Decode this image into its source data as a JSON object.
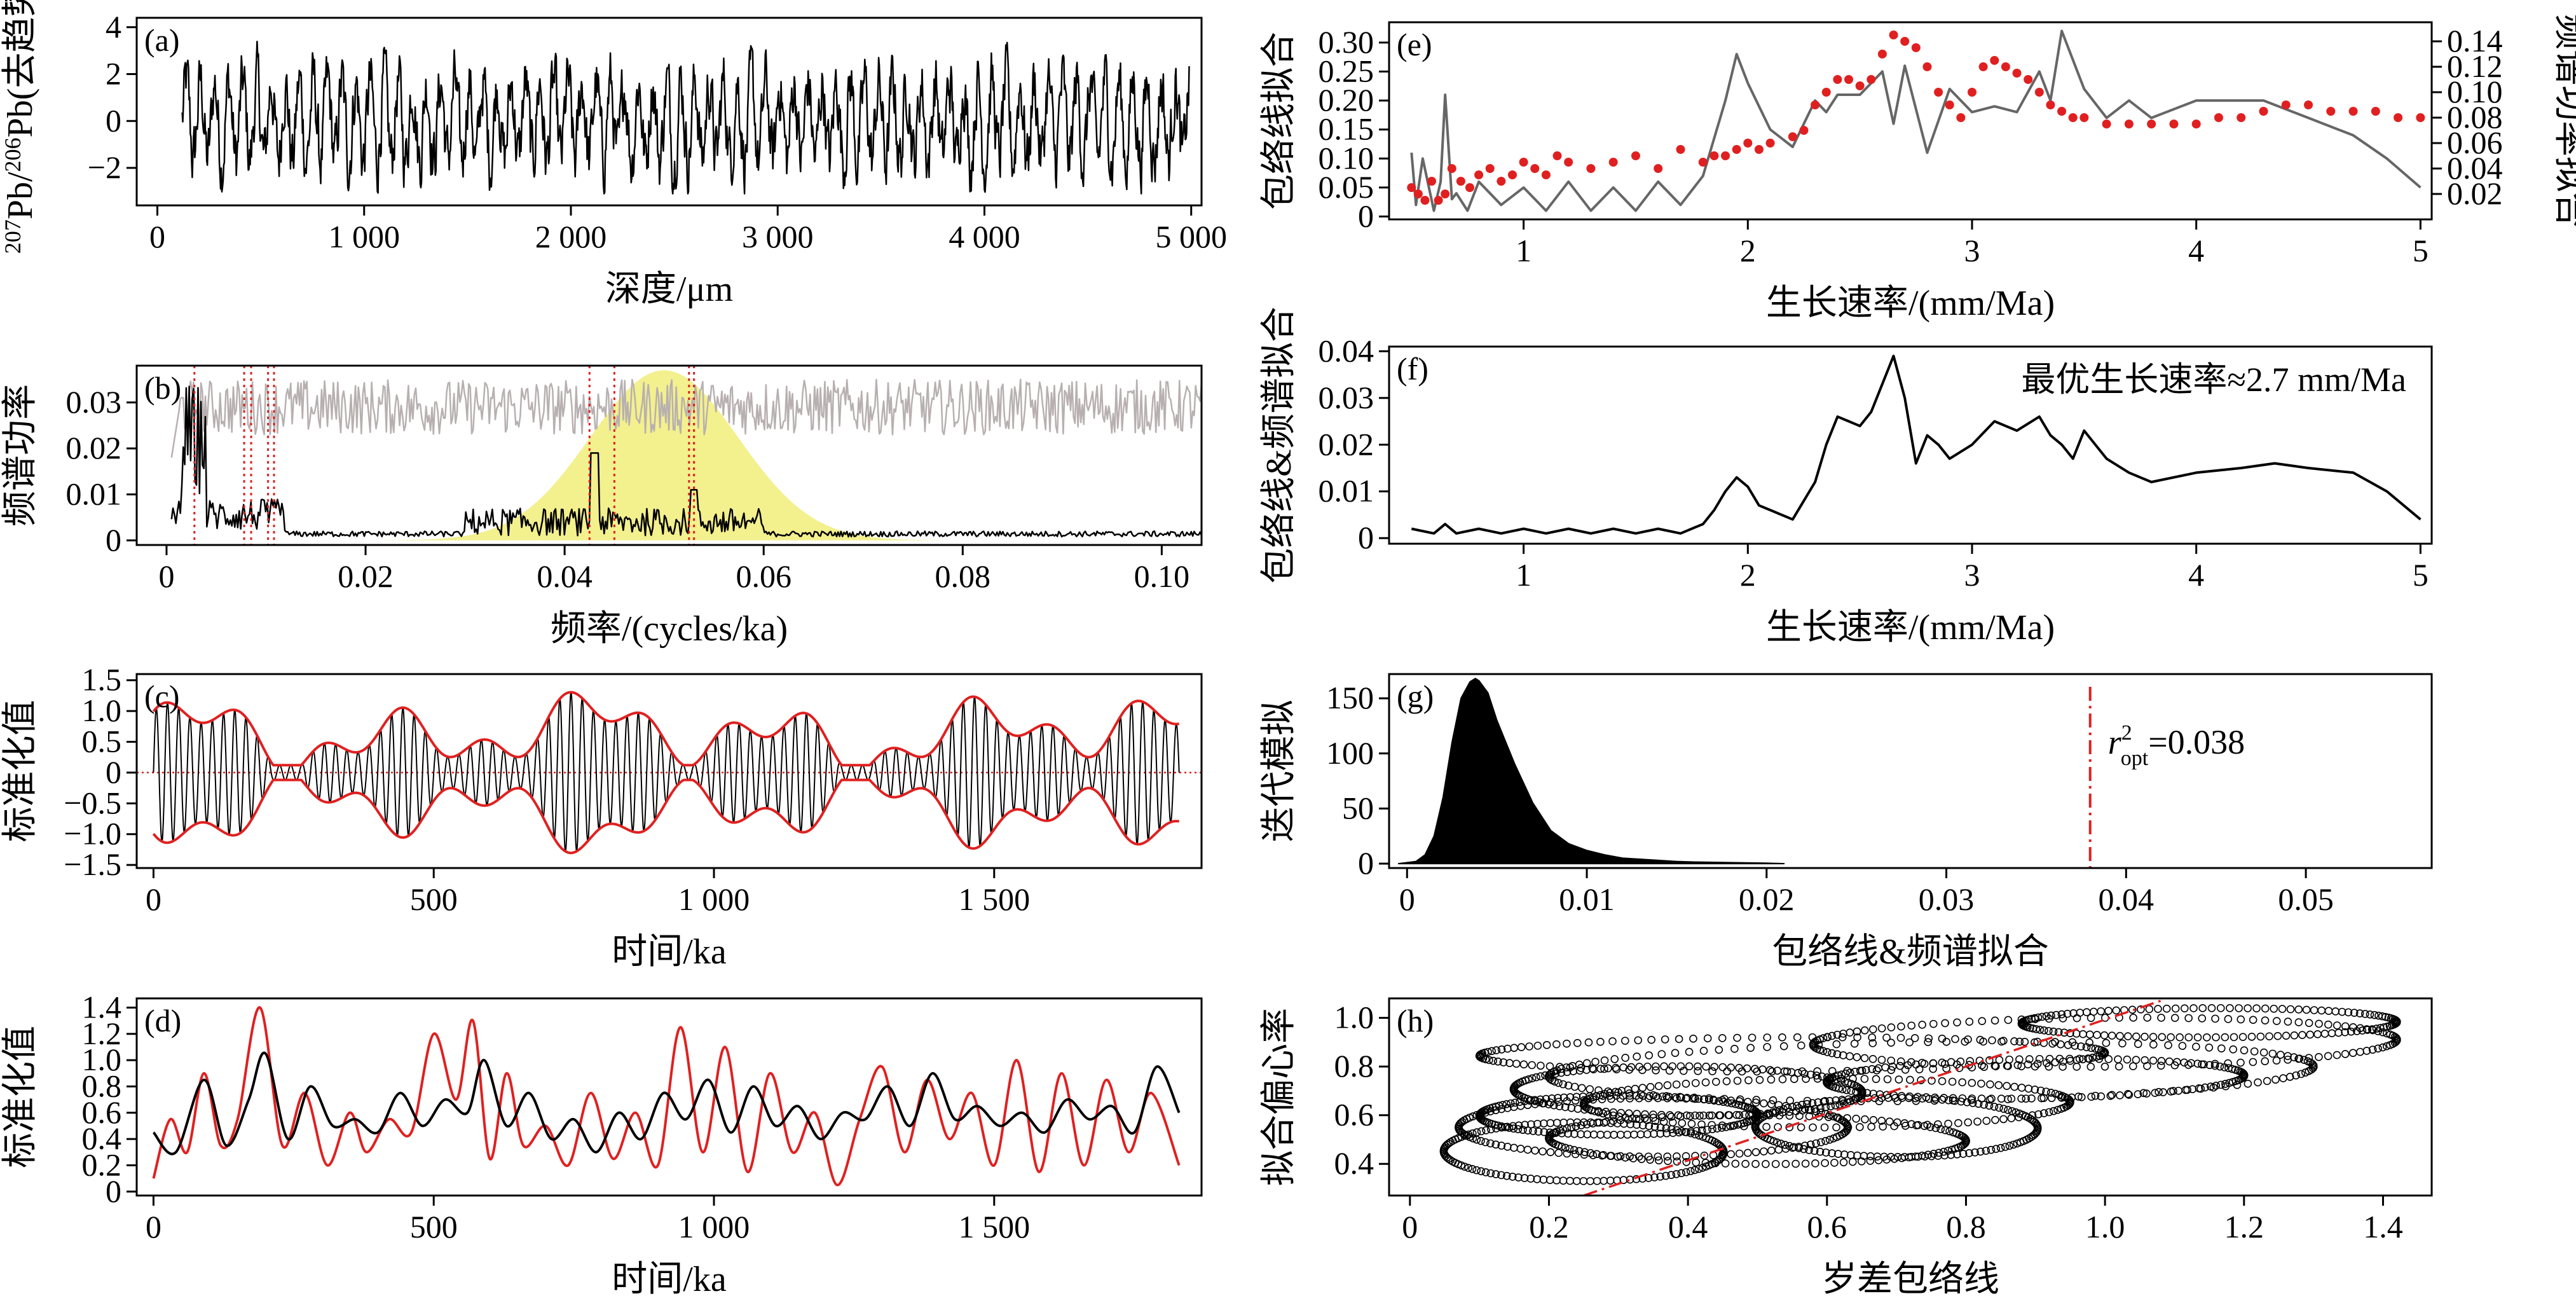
{
  "colors": {
    "black": "#000000",
    "red": "#e02020",
    "gray": "#666666",
    "lightgray": "#b8b0b0",
    "yellow": "#f3f08e"
  },
  "chart_data": [
    {
      "panel": "a",
      "type": "line",
      "label": "(a)",
      "xlabel": "深度/μm",
      "ylabel_parts": [
        "207",
        "Pb/",
        "206",
        "Pb(去趋势)"
      ],
      "xlim": [
        -100,
        5050
      ],
      "ylim": [
        -3.6,
        4.4
      ],
      "xticks": [
        0,
        1000,
        2000,
        3000,
        4000,
        5000
      ],
      "xtick_labels": [
        "0",
        "1 000",
        "2 000",
        "3 000",
        "4 000",
        "5 000"
      ],
      "yticks": [
        -2,
        0,
        2,
        4
      ],
      "ytick_labels": [
        "−2",
        "0",
        "2",
        "4"
      ],
      "series": [
        {
          "color": "#000000",
          "x_range": [
            120,
            4990
          ],
          "n_points": 1600,
          "values_range": [
            -3.1,
            4.0
          ]
        }
      ]
    },
    {
      "panel": "b",
      "type": "line",
      "label": "(b)",
      "xlabel": "频率/(cycles/ka)",
      "ylabel": "频谱功率",
      "xlim": [
        -0.003,
        0.104
      ],
      "ylim": [
        -0.001,
        0.038
      ],
      "xticks": [
        0,
        0.02,
        0.04,
        0.06,
        0.08,
        0.1
      ],
      "xtick_labels": [
        "0",
        "0.02",
        "0.04",
        "0.06",
        "0.08",
        "0.10"
      ],
      "yticks": [
        0,
        0.01,
        0.02,
        0.03
      ],
      "ytick_labels": [
        "0",
        "0.01",
        "0.02",
        "0.03"
      ],
      "bandpass": {
        "center": 0.05,
        "peak": 0.037,
        "range": [
          0.022,
          0.078
        ],
        "color": "#f3f08e"
      },
      "red_dotted_lines_x": [
        0.0028,
        0.0078,
        0.0085,
        0.0102,
        0.0108,
        0.0425,
        0.045,
        0.0525,
        0.053
      ],
      "series": [
        {
          "color": "#b8b0b0",
          "x_range": [
            0.0005,
            0.104
          ],
          "values_range": [
            0.021,
            0.037
          ]
        },
        {
          "color": "#000000",
          "x_range": [
            0.0005,
            0.104
          ],
          "values_range": [
            0.0,
            0.036
          ],
          "peaks_x": [
            0.003,
            0.0035,
            0.043,
            0.053
          ]
        }
      ]
    },
    {
      "panel": "c",
      "type": "line",
      "label": "(c)",
      "xlabel": "时间/ka",
      "ylabel": "标准化值",
      "xlim": [
        -30,
        1870
      ],
      "ylim": [
        -1.55,
        1.6
      ],
      "xticks": [
        0,
        500,
        1000,
        1500
      ],
      "xtick_labels": [
        "0",
        "500",
        "1 000",
        "1 500"
      ],
      "yticks": [
        -1.5,
        -1.0,
        -0.5,
        0,
        0.5,
        1.0,
        1.5
      ],
      "ytick_labels": [
        "−1.5",
        "−1.0",
        "−0.5",
        "0",
        "0.5",
        "1.0",
        "1.5"
      ],
      "series": [
        {
          "name": "",
          "color": "#000000",
          "description_values": "bandpassed oscillation, period ≈ 20 ka",
          "x_range": [
            0,
            1830
          ]
        },
        {
          "name": "",
          "color": "#e02020",
          "description_values": "amplitude envelope",
          "x_range": [
            0,
            1830
          ]
        }
      ]
    },
    {
      "panel": "d",
      "type": "line",
      "label": "(d)",
      "xlabel": "时间/ka",
      "ylabel": "标准化值",
      "xlim": [
        -30,
        1870
      ],
      "ylim": [
        -0.03,
        1.47
      ],
      "xticks": [
        0,
        500,
        1000,
        1500
      ],
      "xtick_labels": [
        "0",
        "500",
        "1 000",
        "1 500"
      ],
      "yticks": [
        0,
        0.2,
        0.4,
        0.6,
        0.8,
        1.0,
        1.2,
        1.4
      ],
      "ytick_labels": [
        "0",
        "0.2",
        "0.4",
        "0.6",
        "0.8",
        "1.0",
        "1.2",
        "1.4"
      ],
      "series": [
        {
          "color": "#e02020",
          "x": [
            0,
            30,
            60,
            90,
            120,
            150,
            190,
            230,
            270,
            310,
            350,
            380,
            420,
            460,
            500,
            540,
            570,
            600,
            630,
            660,
            700,
            740,
            780,
            820,
            860,
            900,
            940,
            980,
            1020,
            1060,
            1100,
            1140,
            1180,
            1220,
            1260,
            1300,
            1340,
            1380,
            1420,
            1460,
            1500,
            1540,
            1580,
            1620,
            1660,
            1700,
            1740,
            1780,
            1830
          ],
          "values": [
            0.1,
            0.55,
            0.3,
            0.9,
            0.35,
            0.55,
            1.4,
            0.35,
            0.75,
            0.2,
            0.6,
            0.3,
            0.55,
            0.45,
            1.2,
            0.7,
            1.3,
            0.25,
            0.9,
            0.35,
            0.5,
            0.2,
            0.75,
            0.25,
            0.6,
            0.2,
            1.25,
            0.3,
            1.1,
            0.15,
            0.9,
            0.3,
            0.6,
            0.05,
            0.55,
            0.95,
            0.3,
            0.85,
            0.4,
            0.75,
            0.2,
            1.0,
            0.15,
            0.9,
            0.2,
            0.85,
            0.3,
            0.75,
            0.2
          ]
        },
        {
          "color": "#000000",
          "x": [
            0,
            40,
            90,
            130,
            170,
            200,
            240,
            280,
            320,
            360,
            400,
            440,
            480,
            520,
            560,
            590,
            630,
            670,
            710,
            750,
            790,
            830,
            870,
            910,
            950,
            990,
            1030,
            1070,
            1110,
            1150,
            1190,
            1230,
            1270,
            1310,
            1350,
            1390,
            1430,
            1470,
            1510,
            1550,
            1590,
            1630,
            1670,
            1710,
            1750,
            1790,
            1830
          ],
          "values": [
            0.45,
            0.3,
            0.85,
            0.35,
            0.7,
            1.05,
            0.4,
            0.8,
            0.5,
            0.55,
            0.45,
            0.75,
            0.5,
            0.7,
            0.6,
            1.0,
            0.5,
            0.75,
            0.4,
            0.55,
            0.3,
            0.6,
            0.4,
            0.75,
            0.55,
            0.85,
            0.45,
            0.8,
            0.5,
            0.65,
            0.4,
            0.6,
            0.55,
            0.8,
            0.5,
            0.9,
            0.55,
            0.65,
            0.5,
            0.6,
            0.45,
            0.7,
            0.55,
            0.65,
            0.45,
            0.95,
            0.6
          ]
        }
      ]
    },
    {
      "panel": "e",
      "type": "line",
      "label": "(e)",
      "xlabel": "生长速率/(mm/Ma)",
      "ylabel": "包络线拟合",
      "ylabel_right": "频谱功率拟合",
      "xlim": [
        0.4,
        5.05
      ],
      "ylim": [
        -0.005,
        0.335
      ],
      "ylim_right": [
        0.0,
        0.155
      ],
      "xticks": [
        1,
        2,
        3,
        4,
        5
      ],
      "xtick_labels": [
        "1",
        "2",
        "3",
        "4",
        "5"
      ],
      "yticks": [
        0,
        0.05,
        0.1,
        0.15,
        0.2,
        0.25,
        0.3
      ],
      "ytick_labels": [
        "0",
        "0.05",
        "0.10",
        "0.15",
        "0.20",
        "0.25",
        "0.30"
      ],
      "yticks_right": [
        0.02,
        0.04,
        0.06,
        0.08,
        0.1,
        0.12,
        0.14
      ],
      "ytick_labels_right": [
        "0.02",
        "0.04",
        "0.06",
        "0.08",
        "0.10",
        "0.12",
        "0.14"
      ],
      "series": [
        {
          "name": "",
          "axis": "left",
          "color": "#666666",
          "x": [
            0.5,
            0.52,
            0.55,
            0.6,
            0.63,
            0.65,
            0.68,
            0.7,
            0.75,
            0.8,
            0.9,
            1.0,
            1.1,
            1.2,
            1.3,
            1.4,
            1.5,
            1.6,
            1.7,
            1.8,
            1.9,
            1.95,
            2.0,
            2.1,
            2.2,
            2.3,
            2.35,
            2.4,
            2.5,
            2.6,
            2.65,
            2.7,
            2.8,
            2.9,
            3.0,
            3.1,
            3.2,
            3.3,
            3.35,
            3.4,
            3.5,
            3.6,
            3.7,
            3.8,
            4.0,
            4.2,
            4.3,
            4.5,
            4.7,
            4.85,
            5.0
          ],
          "values": [
            0.11,
            0.02,
            0.1,
            0.01,
            0.06,
            0.21,
            0.03,
            0.04,
            0.01,
            0.06,
            0.02,
            0.05,
            0.01,
            0.06,
            0.01,
            0.05,
            0.01,
            0.06,
            0.02,
            0.07,
            0.2,
            0.28,
            0.23,
            0.15,
            0.12,
            0.2,
            0.18,
            0.21,
            0.21,
            0.25,
            0.16,
            0.26,
            0.11,
            0.22,
            0.18,
            0.19,
            0.18,
            0.25,
            0.2,
            0.32,
            0.22,
            0.17,
            0.2,
            0.17,
            0.2,
            0.2,
            0.2,
            0.17,
            0.14,
            0.1,
            0.05
          ]
        },
        {
          "name": "",
          "axis": "right",
          "color": "#e02020",
          "style": "dots",
          "x": [
            0.5,
            0.53,
            0.56,
            0.59,
            0.62,
            0.65,
            0.68,
            0.72,
            0.76,
            0.8,
            0.85,
            0.9,
            0.95,
            1.0,
            1.05,
            1.1,
            1.15,
            1.2,
            1.3,
            1.4,
            1.5,
            1.6,
            1.7,
            1.8,
            1.85,
            1.9,
            1.95,
            2.0,
            2.05,
            2.1,
            2.2,
            2.25,
            2.3,
            2.35,
            2.4,
            2.45,
            2.5,
            2.55,
            2.6,
            2.65,
            2.7,
            2.75,
            2.8,
            2.85,
            2.9,
            2.95,
            3.0,
            3.05,
            3.1,
            3.15,
            3.2,
            3.25,
            3.3,
            3.35,
            3.4,
            3.45,
            3.5,
            3.6,
            3.7,
            3.8,
            3.9,
            4.0,
            4.1,
            4.2,
            4.3,
            4.4,
            4.5,
            4.6,
            4.7,
            4.8,
            4.9,
            5.0
          ],
          "values": [
            0.025,
            0.02,
            0.015,
            0.03,
            0.015,
            0.02,
            0.04,
            0.03,
            0.025,
            0.035,
            0.04,
            0.03,
            0.035,
            0.045,
            0.04,
            0.035,
            0.05,
            0.045,
            0.04,
            0.045,
            0.05,
            0.04,
            0.055,
            0.045,
            0.05,
            0.05,
            0.055,
            0.06,
            0.055,
            0.06,
            0.065,
            0.07,
            0.09,
            0.1,
            0.11,
            0.11,
            0.105,
            0.11,
            0.13,
            0.145,
            0.14,
            0.135,
            0.12,
            0.1,
            0.09,
            0.08,
            0.1,
            0.12,
            0.125,
            0.12,
            0.115,
            0.11,
            0.1,
            0.09,
            0.085,
            0.08,
            0.08,
            0.075,
            0.075,
            0.075,
            0.075,
            0.075,
            0.08,
            0.08,
            0.085,
            0.09,
            0.09,
            0.085,
            0.085,
            0.085,
            0.08,
            0.08
          ]
        }
      ]
    },
    {
      "panel": "f",
      "type": "line",
      "label": "(f)",
      "xlabel": "生长速率/(mm/Ma)",
      "ylabel": "包络线&频谱拟合",
      "annotation": "最优生长速率≈2.7 mm/Ma",
      "xlim": [
        0.4,
        5.05
      ],
      "ylim": [
        -0.0012,
        0.041
      ],
      "xticks": [
        1,
        2,
        3,
        4,
        5
      ],
      "xtick_labels": [
        "1",
        "2",
        "3",
        "4",
        "5"
      ],
      "yticks": [
        0,
        0.01,
        0.02,
        0.03,
        0.04
      ],
      "ytick_labels": [
        "0",
        "0.01",
        "0.02",
        "0.03",
        "0.04"
      ],
      "series": [
        {
          "color": "#000000",
          "x": [
            0.5,
            0.6,
            0.65,
            0.7,
            0.8,
            0.9,
            1.0,
            1.1,
            1.2,
            1.3,
            1.4,
            1.5,
            1.6,
            1.7,
            1.8,
            1.85,
            1.9,
            1.95,
            2.0,
            2.05,
            2.1,
            2.2,
            2.3,
            2.35,
            2.4,
            2.45,
            2.5,
            2.55,
            2.6,
            2.65,
            2.7,
            2.75,
            2.8,
            2.85,
            2.9,
            3.0,
            3.1,
            3.2,
            3.3,
            3.35,
            3.4,
            3.45,
            3.5,
            3.6,
            3.7,
            3.8,
            4.0,
            4.2,
            4.35,
            4.5,
            4.7,
            4.85,
            5.0
          ],
          "values": [
            0.002,
            0.001,
            0.003,
            0.001,
            0.002,
            0.001,
            0.002,
            0.001,
            0.002,
            0.001,
            0.002,
            0.001,
            0.002,
            0.001,
            0.003,
            0.006,
            0.01,
            0.013,
            0.011,
            0.007,
            0.006,
            0.004,
            0.012,
            0.02,
            0.026,
            0.025,
            0.024,
            0.027,
            0.033,
            0.039,
            0.03,
            0.016,
            0.022,
            0.02,
            0.017,
            0.02,
            0.025,
            0.023,
            0.026,
            0.022,
            0.02,
            0.017,
            0.023,
            0.017,
            0.014,
            0.012,
            0.014,
            0.015,
            0.016,
            0.015,
            0.014,
            0.01,
            0.004
          ]
        }
      ]
    },
    {
      "panel": "g",
      "type": "area",
      "label": "(g)",
      "xlabel": "包络线&频谱拟合",
      "ylabel": "迭代模拟",
      "annotation_prefix": "r",
      "annotation_sub": "opt",
      "annotation_sup": "2",
      "annotation_value": "=0.038",
      "vline_x": 0.038,
      "xlim": [
        -0.001,
        0.057
      ],
      "ylim": [
        -4,
        172
      ],
      "xticks": [
        0,
        0.01,
        0.02,
        0.03,
        0.04,
        0.05
      ],
      "xtick_labels": [
        "0",
        "0.01",
        "0.02",
        "0.03",
        "0.04",
        "0.05"
      ],
      "yticks": [
        0,
        50,
        100,
        150
      ],
      "ytick_labels": [
        "0",
        "50",
        "100",
        "150"
      ],
      "series": [
        {
          "color": "#000000",
          "x": [
            -0.0005,
            0.0005,
            0.001,
            0.0015,
            0.002,
            0.0025,
            0.003,
            0.0035,
            0.0038,
            0.004,
            0.0045,
            0.005,
            0.0055,
            0.006,
            0.007,
            0.008,
            0.009,
            0.01,
            0.011,
            0.012,
            0.013,
            0.014,
            0.015,
            0.016,
            0.018,
            0.02,
            0.021
          ],
          "values": [
            0,
            2,
            8,
            25,
            60,
            110,
            150,
            165,
            168,
            166,
            155,
            130,
            110,
            90,
            55,
            30,
            18,
            12,
            8,
            5,
            4,
            3,
            2,
            1.5,
            1,
            0.5,
            0
          ]
        }
      ]
    },
    {
      "panel": "h",
      "type": "scatter",
      "label": "(h)",
      "xlabel": "岁差包络线",
      "ylabel": "拟合偏心率",
      "xlim": [
        -0.03,
        1.47
      ],
      "ylim": [
        0.27,
        1.08
      ],
      "xticks": [
        0,
        0.2,
        0.4,
        0.6,
        0.8,
        1.0,
        1.2,
        1.4
      ],
      "xtick_labels": [
        "0",
        "0.2",
        "0.4",
        "0.6",
        "0.8",
        "1.0",
        "1.2",
        "1.4"
      ],
      "yticks": [
        0.4,
        0.6,
        0.8,
        1.0
      ],
      "ytick_labels": [
        "0.4",
        "0.6",
        "0.8",
        "1.0"
      ],
      "regression_line": {
        "x": [
          0.25,
          1.08
        ],
        "y": [
          0.27,
          1.07
        ],
        "color": "#e02020"
      },
      "series": [
        {
          "color": "#000000",
          "marker": "open-circle",
          "x_range": [
            0.02,
            1.42
          ],
          "y_range": [
            0.3,
            1.05
          ]
        }
      ]
    }
  ]
}
